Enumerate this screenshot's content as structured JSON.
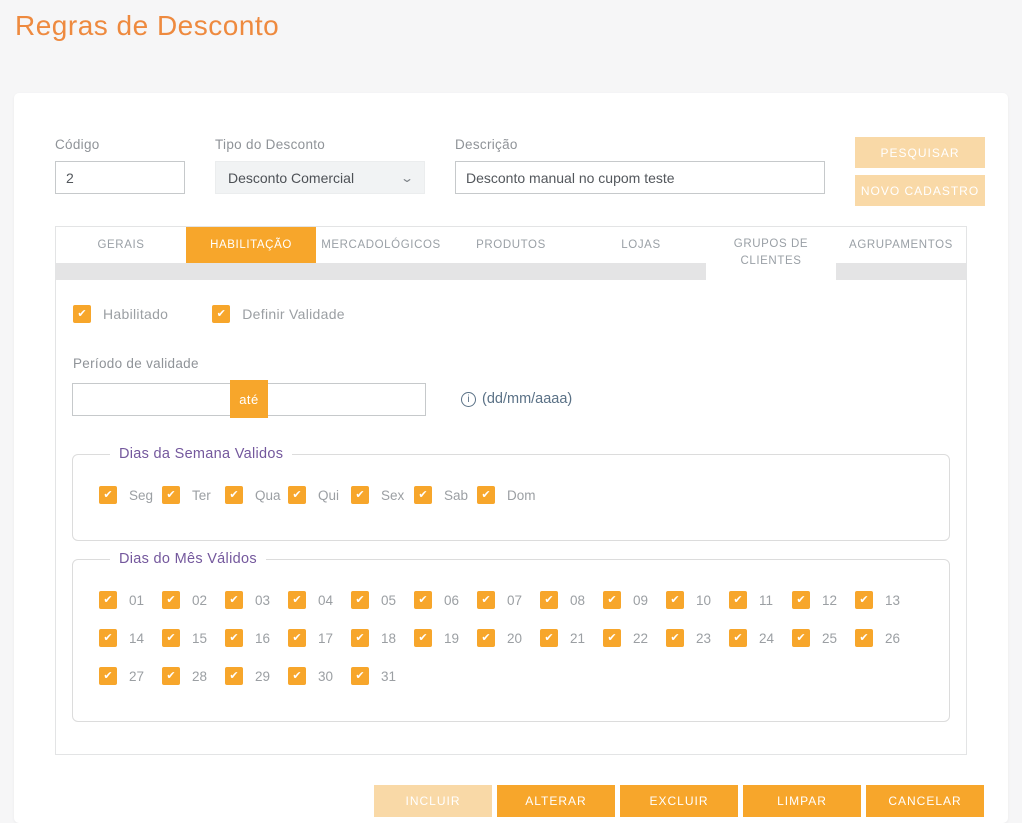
{
  "page": {
    "title": "Regras de Desconto"
  },
  "colors": {
    "primary_orange": "#f7a62b",
    "pale_orange": "#f9d9a7",
    "title_orange": "#ee8a3f",
    "legend_purple": "#74589d",
    "hint_slate": "#5a7186",
    "tab_gray_strip": "#e4e4e5"
  },
  "form": {
    "codigo": {
      "label": "Código",
      "value": "2"
    },
    "tipo": {
      "label": "Tipo do Desconto",
      "value": "Desconto Comercial"
    },
    "descricao": {
      "label": "Descrição",
      "value": "Desconto manual no cupom teste"
    },
    "search_button": "PESQUISAR",
    "new_button": "NOVO CADASTRO"
  },
  "tabs": [
    {
      "label": "GERAIS",
      "active": false
    },
    {
      "label": "HABILITAÇÃO",
      "active": true
    },
    {
      "label": "MERCADOLÓGICOS",
      "active": false
    },
    {
      "label": "PRODUTOS",
      "active": false
    },
    {
      "label": "LOJAS",
      "active": false
    },
    {
      "label": "GRUPOS DE CLIENTES",
      "active": false
    },
    {
      "label": "AGRUPAMENTOS",
      "active": false
    }
  ],
  "habilitacao": {
    "checkboxes": [
      {
        "label": "Habilitado",
        "checked": true
      },
      {
        "label": "Definir Validade",
        "checked": true
      }
    ],
    "periodo": {
      "label": "Período de validade",
      "from_value": "",
      "separator": "até",
      "to_value": "",
      "hint": "(dd/mm/aaaa)"
    },
    "weekdays": {
      "legend": "Dias da Semana Validos",
      "all_checked": true,
      "days": [
        "Seg",
        "Ter",
        "Qua",
        "Qui",
        "Sex",
        "Sab",
        "Dom"
      ]
    },
    "monthdays": {
      "legend": "Dias do Mês Válidos",
      "all_checked": true,
      "days": [
        "01",
        "02",
        "03",
        "04",
        "05",
        "06",
        "07",
        "08",
        "09",
        "10",
        "11",
        "12",
        "13",
        "14",
        "15",
        "16",
        "17",
        "18",
        "19",
        "20",
        "21",
        "22",
        "23",
        "24",
        "25",
        "26",
        "27",
        "28",
        "29",
        "30",
        "31"
      ]
    }
  },
  "actions": [
    {
      "label": "INCLUIR",
      "disabled": true
    },
    {
      "label": "ALTERAR",
      "disabled": false
    },
    {
      "label": "EXCLUIR",
      "disabled": false
    },
    {
      "label": "LIMPAR",
      "disabled": false
    },
    {
      "label": "CANCELAR",
      "disabled": false
    }
  ]
}
